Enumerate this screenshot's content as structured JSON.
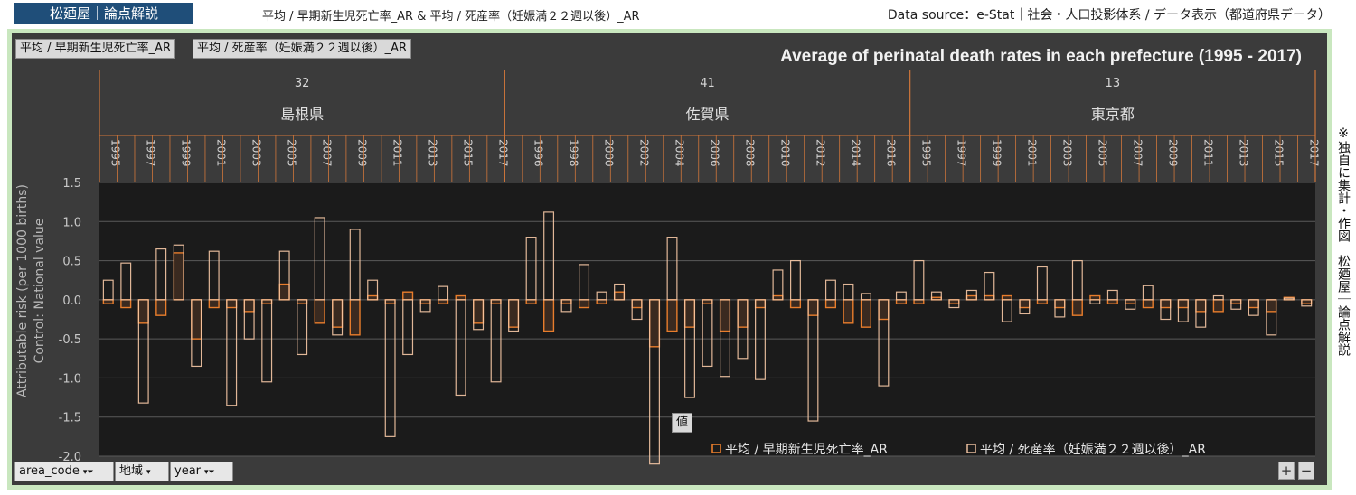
{
  "header": {
    "brand": "松廼屋｜論点解説",
    "subtitle": "平均 / 早期新生児死亡率_AR & 平均 / 死産率（妊娠満２２週以後）_AR",
    "source": "Data source：e-Stat｜社会・人口投影体系 / データ表示（都道府県データ）"
  },
  "side_note": "※独自に集計・作図　松廼屋｜論点解説",
  "field_buttons": {
    "series_a": "平均 / 早期新生児死亡率_AR",
    "series_b": "平均 / 死産率（妊娠満２２週以後）_AR"
  },
  "filters": {
    "area_code": "area_code",
    "region": "地域",
    "year": "year",
    "values_tag": "値"
  },
  "controls": {
    "plus": "+",
    "minus": "−"
  },
  "colors": {
    "series_a": "#e87d2c",
    "series_b": "#f7c9a6",
    "plot_bg": "#1b1b1b",
    "panel_bg": "#3b3b3b",
    "axis_line": "#d0763a"
  },
  "chart_data": {
    "type": "bar",
    "title": "Average of perinatal death rates in each prefecture (1995 - 2017)",
    "ylabel_line1": "Attributable risk (per 1000 births)",
    "ylabel_line2": "Control: National value",
    "ylim": [
      -2.0,
      1.5
    ],
    "yticks": [
      "1.5",
      "1.0",
      "0.5",
      "0.0",
      "-0.5",
      "-1.0",
      "-1.5",
      "-2.0"
    ],
    "grid": true,
    "legend_position": "bottom-right",
    "groups": [
      {
        "code": "32",
        "name": "島根県",
        "x": [
          "1995",
          "1996",
          "1997",
          "1998",
          "1999",
          "2000",
          "2001",
          "2002",
          "2003",
          "2004",
          "2005",
          "2006",
          "2007",
          "2008",
          "2009",
          "2010",
          "2011",
          "2012",
          "2013",
          "2014",
          "2015",
          "2016",
          "2017"
        ],
        "xlabels": [
          "1995",
          "",
          "1997",
          "",
          "1999",
          "",
          "2001",
          "",
          "2003",
          "",
          "2005",
          "",
          "2007",
          "",
          "2009",
          "",
          "2011",
          "",
          "2013",
          "",
          "2015",
          "",
          "2017"
        ],
        "series_a": [
          -0.05,
          -0.1,
          -0.3,
          -0.2,
          0.6,
          -0.5,
          -0.1,
          -0.1,
          -0.15,
          -0.05,
          0.2,
          -0.05,
          -0.3,
          -0.35,
          -0.45,
          0.05,
          -0.05,
          0.1,
          -0.05,
          -0.05,
          0.05,
          -0.3,
          -0.05
        ],
        "series_b": [
          0.25,
          0.47,
          -1.32,
          0.65,
          0.7,
          -0.85,
          0.62,
          -1.35,
          -0.5,
          -1.05,
          0.62,
          -0.7,
          1.05,
          -0.45,
          0.9,
          0.25,
          -1.75,
          -0.7,
          -0.15,
          0.17,
          -1.22,
          -0.38,
          -1.05
        ]
      },
      {
        "code": "41",
        "name": "佐賀県",
        "x": [
          "1995",
          "1996",
          "1997",
          "1998",
          "1999",
          "2000",
          "2001",
          "2002",
          "2003",
          "2004",
          "2005",
          "2006",
          "2007",
          "2008",
          "2009",
          "2010",
          "2011",
          "2012",
          "2013",
          "2014",
          "2015",
          "2016",
          "2017"
        ],
        "xlabels": [
          "",
          "1996",
          "",
          "1998",
          "",
          "2000",
          "",
          "2002",
          "",
          "2004",
          "",
          "2006",
          "",
          "2008",
          "",
          "2010",
          "",
          "2012",
          "",
          "2014",
          "",
          "2016",
          ""
        ],
        "series_a": [
          -0.35,
          -0.05,
          -0.4,
          -0.05,
          -0.1,
          -0.05,
          0.1,
          -0.1,
          -0.6,
          -0.4,
          -0.35,
          -0.05,
          -0.4,
          -0.35,
          -0.1,
          0.05,
          -0.1,
          -0.2,
          -0.1,
          -0.3,
          -0.35,
          -0.25,
          -0.05
        ],
        "series_b": [
          -0.4,
          0.8,
          1.12,
          -0.15,
          0.45,
          0.1,
          0.2,
          -0.25,
          -2.1,
          0.8,
          -1.25,
          -0.85,
          -0.98,
          -0.75,
          -1.02,
          0.38,
          0.5,
          -1.55,
          0.25,
          0.2,
          0.08,
          -1.1,
          0.1
        ]
      },
      {
        "code": "13",
        "name": "東京都",
        "x": [
          "1995",
          "1996",
          "1997",
          "1998",
          "1999",
          "2000",
          "2001",
          "2002",
          "2003",
          "2004",
          "2005",
          "2006",
          "2007",
          "2008",
          "2009",
          "2010",
          "2011",
          "2012",
          "2013",
          "2014",
          "2015",
          "2016",
          "2017"
        ],
        "xlabels": [
          "1995",
          "",
          "1997",
          "",
          "1999",
          "",
          "2001",
          "",
          "2003",
          "",
          "2005",
          "",
          "2007",
          "",
          "2009",
          "",
          "2011",
          "",
          "2013",
          "",
          "2015",
          "",
          "2017"
        ],
        "series_a": [
          -0.05,
          0.03,
          -0.05,
          0.05,
          0.05,
          0.05,
          -0.1,
          -0.05,
          -0.1,
          -0.2,
          0.05,
          -0.05,
          -0.05,
          -0.1,
          -0.1,
          -0.1,
          -0.15,
          -0.15,
          -0.05,
          -0.1,
          -0.15,
          0.03,
          -0.05
        ],
        "series_b": [
          0.5,
          0.1,
          -0.1,
          0.12,
          0.35,
          -0.28,
          -0.18,
          0.42,
          -0.22,
          0.5,
          -0.05,
          0.12,
          -0.12,
          0.18,
          -0.25,
          -0.28,
          -0.35,
          0.05,
          -0.12,
          -0.2,
          -0.45,
          0.02,
          -0.08
        ]
      }
    ],
    "legend": [
      "平均 / 早期新生児死亡率_AR",
      "平均 / 死産率（妊娠満２２週以後）_AR"
    ]
  }
}
